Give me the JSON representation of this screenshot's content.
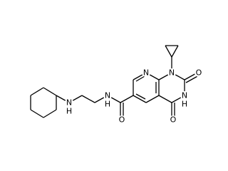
{
  "atoms": [
    {
      "label": "N"
    },
    {
      "label": "N"
    },
    {
      "label": "O"
    },
    {
      "label": "N"
    },
    {
      "label": "H"
    },
    {
      "label": "O"
    },
    {
      "label": "O"
    },
    {
      "label": "N"
    },
    {
      "label": "H"
    },
    {
      "label": "N"
    },
    {
      "label": "H"
    }
  ]
}
